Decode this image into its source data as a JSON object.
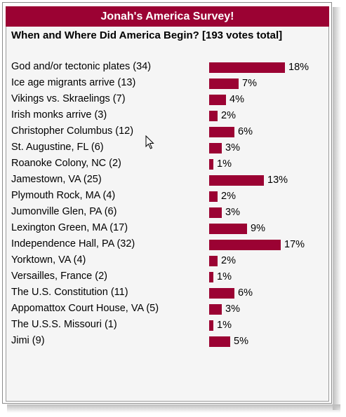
{
  "survey": {
    "title": "Jonah's America Survey!",
    "question": "When and Where Did America Begin? [193 votes total]",
    "accent_color": "#9b0233",
    "items": [
      {
        "label": "God and/or tectonic plates (34)",
        "pct": "18%",
        "value": 18
      },
      {
        "label": "Ice age migrants arrive (13)",
        "pct": "7%",
        "value": 7
      },
      {
        "label": "Vikings vs. Skraelings (7)",
        "pct": "4%",
        "value": 4
      },
      {
        "label": "Irish monks arrive (3)",
        "pct": "2%",
        "value": 2
      },
      {
        "label": "Christopher Columbus (12)",
        "pct": "6%",
        "value": 6
      },
      {
        "label": "St. Augustine, FL (6)",
        "pct": "3%",
        "value": 3
      },
      {
        "label": "Roanoke Colony, NC (2)",
        "pct": "1%",
        "value": 1
      },
      {
        "label": "Jamestown, VA (25)",
        "pct": "13%",
        "value": 13
      },
      {
        "label": "Plymouth Rock, MA (4)",
        "pct": "2%",
        "value": 2
      },
      {
        "label": "Jumonville Glen, PA (6)",
        "pct": "3%",
        "value": 3
      },
      {
        "label": "Lexington Green, MA (17)",
        "pct": "9%",
        "value": 9
      },
      {
        "label": "Independence Hall, PA (32)",
        "pct": "17%",
        "value": 17
      },
      {
        "label": "Yorktown, VA (4)",
        "pct": "2%",
        "value": 2
      },
      {
        "label": "Versailles, France (2)",
        "pct": "1%",
        "value": 1
      },
      {
        "label": "The U.S. Constitution (11)",
        "pct": "6%",
        "value": 6
      },
      {
        "label": "Appomattox Court House, VA (5)",
        "pct": "3%",
        "value": 3
      },
      {
        "label": "The U.S.S. Missouri (1)",
        "pct": "1%",
        "value": 1
      },
      {
        "label": "Jimi (9)",
        "pct": "5%",
        "value": 5
      }
    ]
  }
}
